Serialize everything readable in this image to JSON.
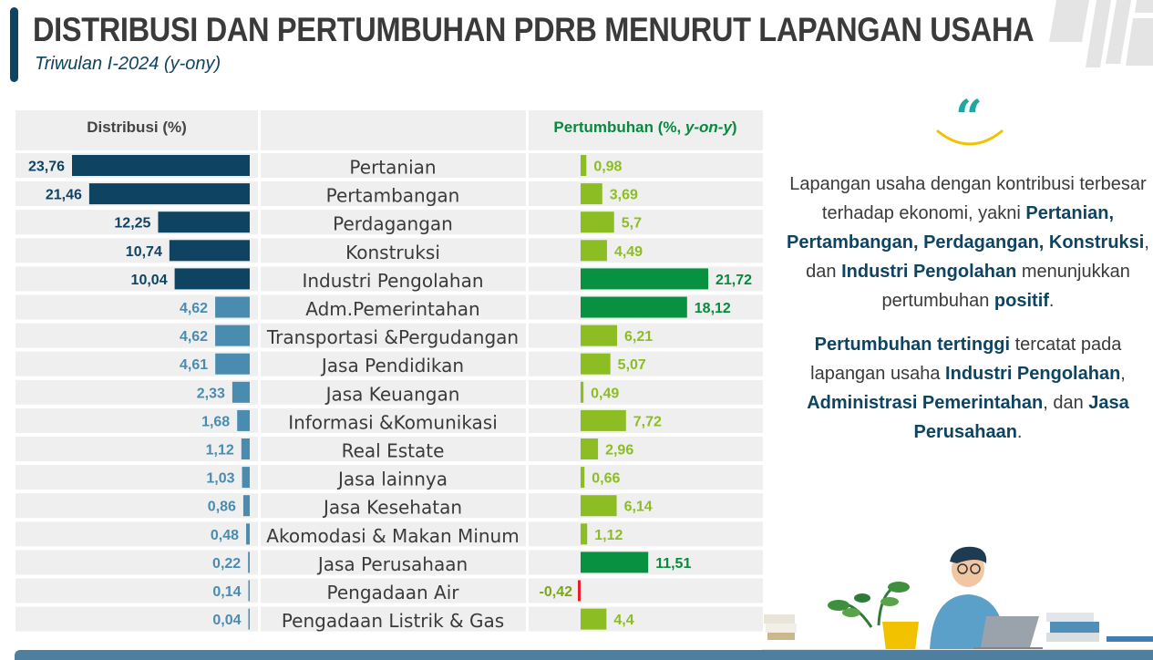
{
  "header": {
    "title": "DISTRIBUSI DAN PERTUMBUHAN PDRB MENURUT LAPANGAN USAHA",
    "subtitle": "Triwulan I-2024 (y-ony)"
  },
  "colors": {
    "dark_navy": "#0e4461",
    "steel_blue": "#4a8bb0",
    "light_green": "#8cbd22",
    "dark_green": "#079140",
    "negative_red": "#e8202a",
    "panel_gray": "#efefef",
    "green_label": "#078a3d"
  },
  "chart_data": {
    "type": "bar",
    "left_header": "Distribusi (%)",
    "right_header_prefix": "Pertumbuhan (%, ",
    "right_header_em": "y-on-y",
    "right_header_suffix": ")",
    "categories": [
      "Pertanian",
      "Pertambangan",
      "Perdagangan",
      "Konstruksi",
      "Industri Pengolahan",
      "Adm.Pemerintahan",
      "Transportasi &Pergudangan",
      "Jasa Pendidikan",
      "Jasa Keuangan",
      "Informasi &Komunikasi",
      "Real Estate",
      "Jasa lainnya",
      "Jasa Kesehatan",
      "Akomodasi & Makan Minum",
      "Jasa Perusahaan",
      "Pengadaan Air",
      "Pengadaan Listrik & Gas"
    ],
    "series": [
      {
        "values": [
          23.76,
          21.46,
          12.25,
          10.74,
          10.04,
          4.62,
          4.62,
          4.61,
          2.33,
          1.68,
          1.12,
          1.03,
          0.86,
          0.48,
          0.22,
          0.14,
          0.04
        ],
        "labels": [
          "23,76",
          "21,46",
          "12,25",
          "10,74",
          "10,04",
          "4,62",
          "4,62",
          "4,61",
          "2,33",
          "1,68",
          "1,12",
          "1,03",
          "0,86",
          "0,48",
          "0,22",
          "0,14",
          "0,04"
        ]
      },
      {
        "values": [
          0.98,
          3.69,
          5.7,
          4.49,
          21.72,
          18.12,
          6.21,
          5.07,
          0.49,
          7.72,
          2.96,
          0.66,
          6.14,
          1.12,
          11.51,
          -0.42,
          4.4
        ],
        "labels": [
          "0,98",
          "3,69",
          "5,7",
          "4,49",
          "21,72",
          "18,12",
          "6,21",
          "5,07",
          "0,49",
          "7,72",
          "2,96",
          "0,66",
          "6,14",
          "1,12",
          "11,51",
          "-0,42",
          "4,4"
        ]
      }
    ]
  },
  "text_panel": {
    "p1": {
      "t1": "Lapangan usaha dengan kontribusi terbesar terhadap ekonomi, yakni ",
      "b1": "Pertanian, Pertambangan, Perdagangan, Konstruksi",
      "t2": ", dan ",
      "b2": "Industri Pengolahan",
      "t3": " menunjukkan pertumbuhan ",
      "b3": "positif",
      "t4": "."
    },
    "p2": {
      "b1": "Pertumbuhan tertinggi",
      "t1": " tercatat pada lapangan usaha ",
      "b2": "Industri Pengolahan",
      "t2": ", ",
      "b3": "Administrasi Pemerintahan",
      "t3": ", dan ",
      "b4": "Jasa Perusahaan",
      "t4": "."
    }
  },
  "icons": {
    "quote": "quote-icon",
    "illustration": "person-at-laptop-illustration",
    "decoration": "grid-stripes-decoration"
  }
}
